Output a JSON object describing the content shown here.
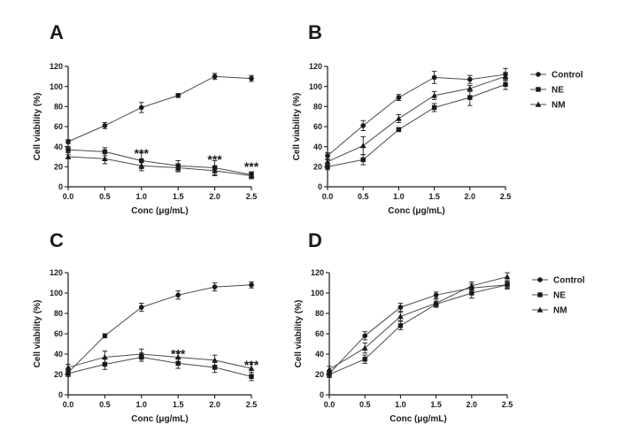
{
  "legend": [
    {
      "name": "Control",
      "marker": "circle"
    },
    {
      "name": "NE",
      "marker": "square"
    },
    {
      "name": "NM",
      "marker": "triangle"
    }
  ],
  "chart_data": [
    {
      "id": "A",
      "type": "line",
      "panel_label": "A",
      "xlabel": "Conc (μg/mL)",
      "ylabel": "Cell viability (%)",
      "xlim": [
        0,
        2.5
      ],
      "ylim": [
        0,
        120
      ],
      "x_ticks": [
        "0.0",
        "0.5",
        "1.0",
        "1.5",
        "2.0",
        "2.5"
      ],
      "y_ticks": [
        "0",
        "20",
        "40",
        "60",
        "80",
        "100",
        "120"
      ],
      "x": [
        0,
        0.5,
        1.0,
        1.5,
        2.0,
        2.5
      ],
      "series": [
        {
          "name": "Control",
          "marker": "circle",
          "values": [
            45,
            61,
            79,
            91,
            110,
            108
          ],
          "errors": [
            2,
            3,
            5,
            2,
            3,
            3
          ]
        },
        {
          "name": "NE",
          "marker": "square",
          "values": [
            37,
            35,
            26,
            21,
            19,
            12
          ],
          "errors": [
            3,
            4,
            8,
            5,
            7,
            3
          ]
        },
        {
          "name": "NM",
          "marker": "triangle",
          "values": [
            30,
            28,
            21,
            19,
            16,
            11
          ],
          "errors": [
            2,
            5,
            5,
            4,
            5,
            3
          ]
        }
      ],
      "annotations": [
        {
          "x": 1.0,
          "y": 36,
          "text": "***"
        },
        {
          "x": 2.0,
          "y": 30,
          "text": "***"
        },
        {
          "x": 2.5,
          "y": 23,
          "text": "***"
        }
      ],
      "grid": false,
      "legend": false
    },
    {
      "id": "B",
      "type": "line",
      "panel_label": "B",
      "xlabel": "Conc (μg/mL)",
      "ylabel": "Cell viability (%)",
      "xlim": [
        0,
        2.5
      ],
      "ylim": [
        0,
        120
      ],
      "x_ticks": [
        "0.0",
        "0.5",
        "1.0",
        "1.5",
        "2.0",
        "2.5"
      ],
      "y_ticks": [
        "0",
        "20",
        "40",
        "60",
        "80",
        "100",
        "120"
      ],
      "x": [
        0,
        0.5,
        1.0,
        1.5,
        2.0,
        2.5
      ],
      "series": [
        {
          "name": "Control",
          "marker": "circle",
          "values": [
            31,
            61,
            89,
            109,
            107,
            112
          ],
          "errors": [
            3,
            5,
            3,
            6,
            4,
            6
          ]
        },
        {
          "name": "NE",
          "marker": "square",
          "values": [
            20,
            27,
            57,
            79,
            89,
            102
          ],
          "errors": [
            3,
            5,
            2,
            4,
            8,
            5
          ]
        },
        {
          "name": "NM",
          "marker": "triangle",
          "values": [
            25,
            41,
            68,
            91,
            98,
            110
          ],
          "errors": [
            2,
            9,
            4,
            4,
            3,
            4
          ]
        }
      ],
      "annotations": [],
      "grid": false,
      "legend": "right"
    },
    {
      "id": "C",
      "type": "line",
      "panel_label": "C",
      "xlabel": "Conc (μg/mL)",
      "ylabel": "Cell viability (%)",
      "xlim": [
        0,
        2.5
      ],
      "ylim": [
        0,
        120
      ],
      "x_ticks": [
        "0.0",
        "0.5",
        "1.0",
        "1.5",
        "2.0",
        "2.5"
      ],
      "y_ticks": [
        "0",
        "20",
        "40",
        "60",
        "80",
        "100",
        "120"
      ],
      "x": [
        0,
        0.5,
        1.0,
        1.5,
        2.0,
        2.5
      ],
      "series": [
        {
          "name": "Control",
          "marker": "circle",
          "values": [
            22,
            58,
            86,
            98,
            106,
            108
          ],
          "errors": [
            3,
            2,
            4,
            4,
            4,
            3
          ]
        },
        {
          "name": "NE",
          "marker": "square",
          "values": [
            21,
            30,
            37,
            31,
            27,
            18
          ],
          "errors": [
            3,
            5,
            4,
            5,
            5,
            4
          ]
        },
        {
          "name": "NM",
          "marker": "triangle",
          "values": [
            27,
            37,
            40,
            37,
            34,
            26
          ],
          "errors": [
            3,
            6,
            5,
            5,
            5,
            6
          ]
        }
      ],
      "annotations": [
        {
          "x": 1.5,
          "y": 43,
          "text": "***"
        },
        {
          "x": 2.5,
          "y": 32,
          "text": "***"
        }
      ],
      "grid": false,
      "legend": false
    },
    {
      "id": "D",
      "type": "line",
      "panel_label": "D",
      "xlabel": "Conc (μg/mL)",
      "ylabel": "Cell viability (%)",
      "xlim": [
        0,
        2.5
      ],
      "ylim": [
        0,
        120
      ],
      "x_ticks": [
        "0.0",
        "0.5",
        "1.0",
        "1.5",
        "2.0",
        "2.5"
      ],
      "y_ticks": [
        "0",
        "20",
        "40",
        "60",
        "80",
        "100",
        "120"
      ],
      "x": [
        0,
        0.5,
        1.0,
        1.5,
        2.0,
        2.5
      ],
      "series": [
        {
          "name": "Control",
          "marker": "circle",
          "values": [
            21,
            58,
            86,
            98,
            105,
            108
          ],
          "errors": [
            3,
            4,
            4,
            3,
            4,
            3
          ]
        },
        {
          "name": "NE",
          "marker": "square",
          "values": [
            20,
            35,
            68,
            89,
            100,
            108
          ],
          "errors": [
            3,
            4,
            4,
            3,
            5,
            4
          ]
        },
        {
          "name": "NM",
          "marker": "triangle",
          "values": [
            25,
            46,
            77,
            90,
            107,
            116
          ],
          "errors": [
            3,
            5,
            4,
            4,
            4,
            4
          ]
        }
      ],
      "annotations": [],
      "grid": false,
      "legend": "right"
    }
  ]
}
